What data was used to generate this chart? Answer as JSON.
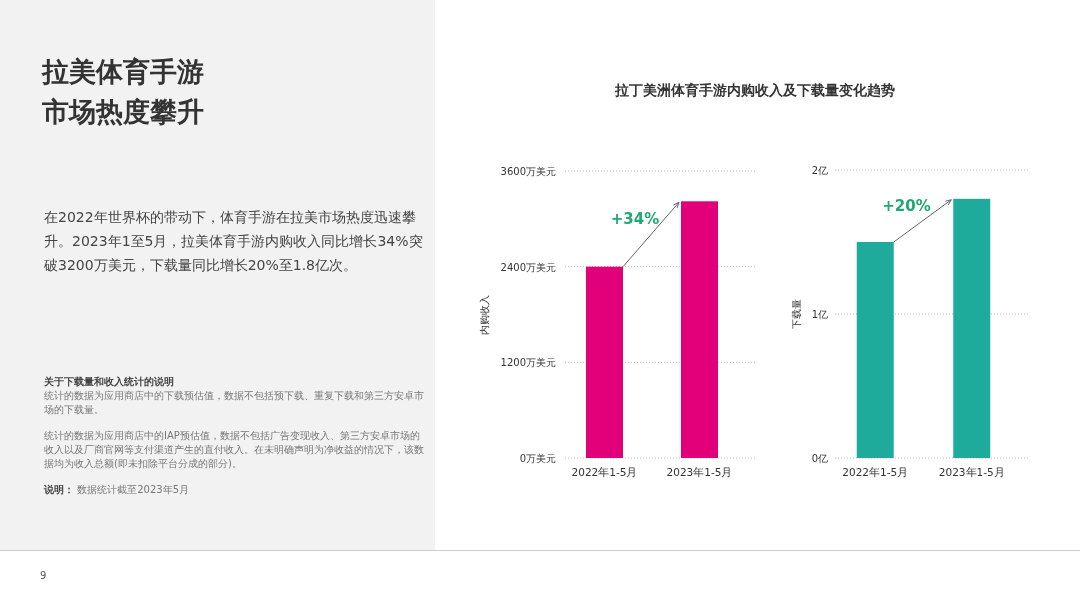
{
  "chart_data": [
    {
      "type": "other",
      "title": "拉美体育手游市场热度攀升",
      "subtitle": "在2022年世界杯的带动下，体育手游在拉美市场热度迅速攀升。2023年1至5月，拉美体育手游内购收入同比增长34%突破3200万美元，下载量同比增长20%至1.8亿次。",
      "annotations": [
        "**关于下载量和收入统计的说明**",
        "统计的数据为应用商店中的下载预估值，数据不包括预下载、重复下载和第三方安卓市场的下载量。",
        "统计的数据为应用商店中的IAP预估值，数据不包括广告变现收入、第三方安卓市场的收入以及厂商官网等支付渠道产生的直付收入。在未明确声明为净收益的情况下，该数据均为收入总额(即未扣除平台分成的部分)。",
        "**说明：** 数据统计截至2023年5月",
        "9"
      ]
    },
    {
      "type": "bar",
      "title": "拉丁美洲体育手游内购收入及下载量变化趋势",
      "ylabel": "内购收入",
      "categories": [
        "2022年1-5月",
        "2023年1-5月"
      ],
      "values": [
        2400,
        3220
      ],
      "color": "#e2007a",
      "ylim": [
        0,
        3600
      ],
      "yticks": [
        {
          "value": 0,
          "label": "0万美元"
        },
        {
          "value": 1200,
          "label": "1200万美元"
        },
        {
          "value": 2400,
          "label": "2400万美元"
        },
        {
          "value": 3600,
          "label": "3600万美元"
        }
      ],
      "grid": "y",
      "annotations": [
        "+34%"
      ]
    },
    {
      "type": "bar",
      "ylabel": "下载量",
      "categories": [
        "2022年1-5月",
        "2023年1-5月"
      ],
      "values": [
        1.5,
        1.8
      ],
      "color": "#1eab9c",
      "ylim": [
        0,
        2
      ],
      "yticks": [
        {
          "value": 0,
          "label": "0亿"
        },
        {
          "value": 1,
          "label": "1亿"
        },
        {
          "value": 2,
          "label": "2亿"
        }
      ],
      "grid": "y",
      "annotations": [
        "+20%"
      ]
    }
  ]
}
